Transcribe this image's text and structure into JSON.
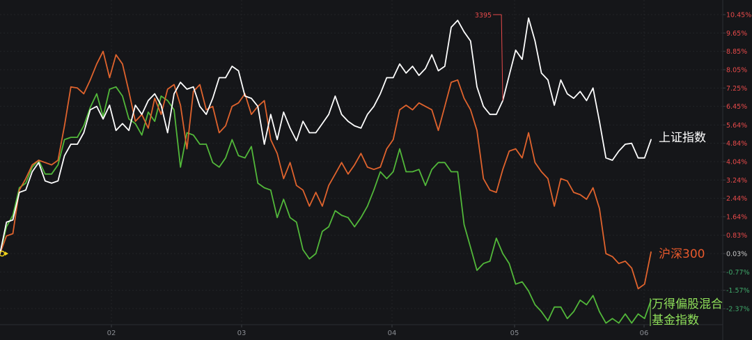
{
  "chart_data": {
    "type": "line",
    "x_ticks": [
      "02",
      "03",
      "04",
      "05",
      "06"
    ],
    "y_ticks": [
      "10.45%",
      "9.65%",
      "8.85%",
      "8.05%",
      "7.25%",
      "6.45%",
      "5.64%",
      "4.84%",
      "4.04%",
      "3.24%",
      "2.44%",
      "1.64%",
      "0.83%",
      "0.03%",
      "-0.77%",
      "-1.57%",
      "-2.37%"
    ],
    "ylim": [
      -2.77,
      10.85
    ],
    "grid": true,
    "annotation": {
      "text": "3395",
      "series": "上证指数",
      "index": 78
    },
    "colors": {
      "positive_axis": "#e84a4a",
      "negative_axis": "#3fa86a",
      "background": "#151619"
    },
    "series": [
      {
        "name": "上证指数",
        "label_lines": [
          "上证指数"
        ],
        "color": "#ffffff",
        "label_color": "#ffffff",
        "values": [
          0.03,
          1.4,
          1.5,
          2.7,
          2.8,
          3.6,
          4.0,
          3.2,
          3.1,
          3.2,
          4.3,
          4.8,
          4.8,
          5.3,
          6.3,
          6.45,
          5.9,
          6.5,
          5.4,
          5.7,
          5.4,
          6.5,
          6.1,
          6.7,
          7.0,
          6.5,
          5.3,
          7.0,
          7.5,
          7.2,
          7.3,
          6.45,
          6.1,
          6.8,
          7.7,
          7.7,
          8.2,
          8.0,
          6.9,
          6.8,
          6.45,
          4.8,
          6.1,
          5.0,
          6.2,
          5.5,
          4.95,
          5.8,
          5.3,
          5.3,
          5.7,
          6.1,
          6.9,
          6.1,
          5.8,
          5.6,
          5.5,
          6.1,
          6.45,
          7.0,
          7.7,
          7.7,
          8.3,
          7.9,
          8.2,
          7.8,
          8.1,
          8.7,
          8.0,
          8.2,
          9.9,
          10.2,
          9.7,
          9.3,
          7.3,
          6.45,
          6.1,
          6.1,
          6.7,
          7.8,
          8.9,
          8.5,
          10.3,
          9.3,
          7.9,
          7.6,
          6.5,
          7.6,
          7.0,
          6.8,
          7.1,
          6.7,
          7.25,
          5.8,
          4.2,
          4.1,
          4.5,
          4.8,
          4.84,
          4.2,
          4.2,
          5.0
        ]
      },
      {
        "name": "沪深300",
        "label_lines": [
          "沪深300"
        ],
        "color": "#e0632d",
        "label_color": "#e8592c",
        "values": [
          0.03,
          0.8,
          0.9,
          2.8,
          3.3,
          3.9,
          4.1,
          4.0,
          3.9,
          4.1,
          5.6,
          7.3,
          7.25,
          7.0,
          7.6,
          8.3,
          8.85,
          7.7,
          8.7,
          8.3,
          7.1,
          5.8,
          6.1,
          5.5,
          6.8,
          6.1,
          7.2,
          7.4,
          6.5,
          4.6,
          7.1,
          7.4,
          6.3,
          6.45,
          5.3,
          5.6,
          6.45,
          6.6,
          7.0,
          6.1,
          6.45,
          6.7,
          5.0,
          4.4,
          3.3,
          4.0,
          3.0,
          2.8,
          2.1,
          2.7,
          2.1,
          3.0,
          3.5,
          4.0,
          3.5,
          3.9,
          4.4,
          3.8,
          3.7,
          3.8,
          4.6,
          5.0,
          6.3,
          6.5,
          6.3,
          6.6,
          6.45,
          6.3,
          5.4,
          6.45,
          7.5,
          7.6,
          6.8,
          6.3,
          5.4,
          3.3,
          2.8,
          2.7,
          3.7,
          4.5,
          4.6,
          4.2,
          5.3,
          4.0,
          3.6,
          3.3,
          2.1,
          3.3,
          3.2,
          2.7,
          2.6,
          2.4,
          2.9,
          2.0,
          0.03,
          -0.1,
          -0.4,
          -0.3,
          -0.6,
          -1.5,
          -1.3,
          0.1
        ]
      },
      {
        "name": "万得偏股混合基金指数",
        "label_lines": [
          "万得偏股混合",
          "基金指数"
        ],
        "color": "#52b83a",
        "label_color": "#8fe05a",
        "values": [
          0.03,
          1.2,
          1.7,
          2.9,
          3.1,
          3.8,
          4.1,
          3.5,
          3.5,
          3.9,
          5.0,
          5.1,
          5.1,
          5.6,
          6.4,
          7.0,
          6.0,
          7.2,
          7.3,
          6.9,
          5.9,
          5.7,
          5.2,
          6.2,
          5.8,
          6.9,
          6.7,
          6.3,
          3.8,
          5.3,
          5.2,
          4.8,
          4.8,
          4.0,
          3.8,
          4.2,
          5.0,
          4.3,
          4.2,
          4.7,
          3.1,
          2.9,
          2.8,
          1.6,
          2.4,
          1.6,
          1.4,
          0.2,
          -0.2,
          0.03,
          1.0,
          1.2,
          1.9,
          1.7,
          1.6,
          1.2,
          1.6,
          2.1,
          2.8,
          3.6,
          3.3,
          3.6,
          4.6,
          3.6,
          3.6,
          3.7,
          3.0,
          3.7,
          4.0,
          4.0,
          3.6,
          3.6,
          1.3,
          0.3,
          -0.7,
          -0.4,
          -0.3,
          0.7,
          0.03,
          -0.4,
          -1.3,
          -1.2,
          -1.6,
          -2.2,
          -2.5,
          -2.9,
          -2.3,
          -2.3,
          -2.8,
          -2.5,
          -2.0,
          -2.2,
          -1.8,
          -2.5,
          -3.0,
          -2.8,
          -3.0,
          -2.6,
          -3.0,
          -2.6,
          -2.8,
          -2.0
        ]
      }
    ]
  }
}
